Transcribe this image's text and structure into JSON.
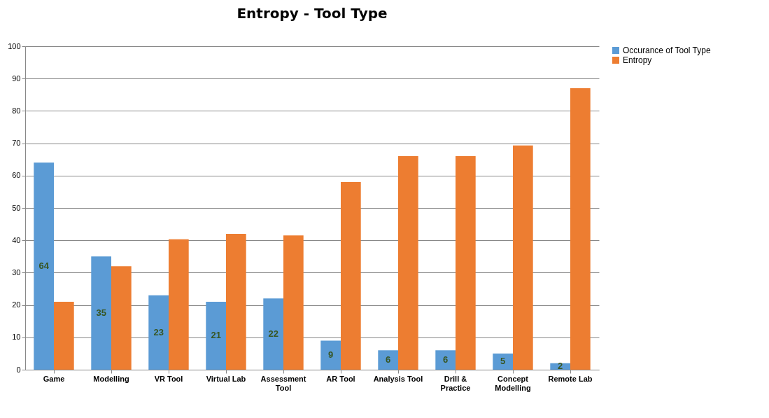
{
  "chart_data": {
    "type": "bar",
    "title": "Entropy - Tool Type",
    "categories": [
      "Game",
      "Modelling",
      "VR Tool",
      "Virtual Lab",
      "Assessment Tool",
      "AR Tool",
      "Analysis Tool",
      "Drill & Practice",
      "Concept Modelling",
      "Remote Lab"
    ],
    "series": [
      {
        "name": "Occurance of Tool Type",
        "color": "#5b9bd5",
        "values": [
          64,
          35,
          23,
          21,
          22,
          9,
          6,
          6,
          5,
          2
        ],
        "value_labels": [
          "64",
          "35",
          "23",
          "21",
          "22",
          "9",
          "6",
          "6",
          "5",
          "2"
        ]
      },
      {
        "name": "Entropy",
        "color": "#ed7d31",
        "values": [
          21,
          32,
          40.3,
          42,
          41.5,
          58,
          66,
          66,
          69.3,
          87
        ]
      }
    ],
    "ylim": [
      0,
      100
    ],
    "yticks": [
      0,
      10,
      20,
      30,
      40,
      50,
      60,
      70,
      80,
      90,
      100
    ],
    "grid": "y",
    "legend": "right"
  }
}
